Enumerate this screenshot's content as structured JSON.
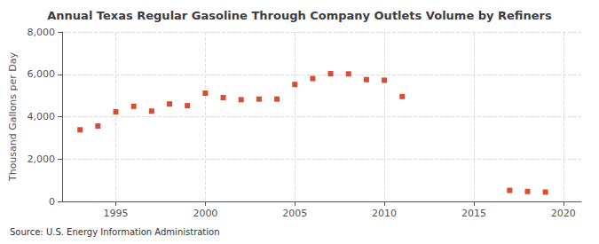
{
  "chart_data": {
    "type": "scatter",
    "title": "Annual Texas Regular Gasoline Through Company Outlets Volume by Refiners",
    "ylabel": "Thousand Gallons per Day",
    "annotation": "Source: U.S. Energy Information Administration",
    "x": [
      1993,
      1994,
      1995,
      1996,
      1997,
      1998,
      1999,
      2000,
      2001,
      2002,
      2003,
      2004,
      2005,
      2006,
      2007,
      2008,
      2009,
      2010,
      2011,
      2017,
      2018,
      2019
    ],
    "values": [
      3380,
      3560,
      4230,
      4490,
      4260,
      4600,
      4520,
      5110,
      4900,
      4800,
      4830,
      4830,
      5520,
      5800,
      6030,
      6020,
      5750,
      5720,
      4950,
      520,
      470,
      440
    ],
    "color": "#cc2200",
    "marker": "square",
    "xlim": [
      1992,
      2021
    ],
    "xticks": [
      1995,
      2000,
      2005,
      2010,
      2015,
      2020
    ],
    "ylim": [
      0,
      8000
    ],
    "yticks": [
      0,
      {
        "value": 2000,
        "label": "2,000"
      },
      {
        "value": 4000,
        "label": "4,000"
      },
      {
        "value": 6000,
        "label": "6,000"
      },
      {
        "value": 8000,
        "label": "8,000"
      }
    ],
    "grid": true
  }
}
